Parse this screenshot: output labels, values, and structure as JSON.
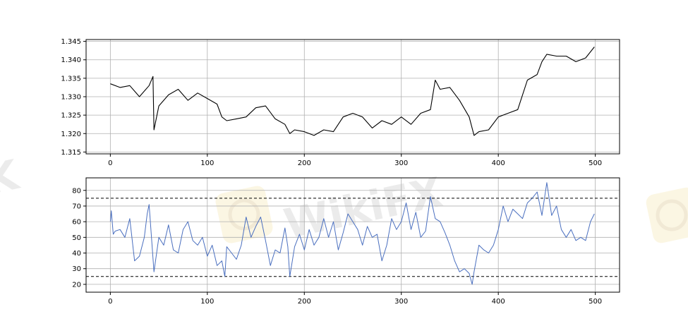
{
  "watermark": {
    "text": "WikiFX",
    "color": "#c8c8c8",
    "badge_color": "#f6e6b0",
    "icon": "eagle-logo-icon"
  },
  "chart_data": [
    {
      "type": "line",
      "title": "",
      "xlabel": "",
      "ylabel": "",
      "xlim": [
        -25,
        525
      ],
      "ylim": [
        1.3145,
        1.3455
      ],
      "xticks": [
        0,
        100,
        200,
        300,
        400,
        500
      ],
      "yticks": [
        1.315,
        1.32,
        1.325,
        1.33,
        1.335,
        1.34,
        1.345
      ],
      "ytick_labels": [
        "1.315",
        "1.320",
        "1.325",
        "1.330",
        "1.335",
        "1.340",
        "1.345"
      ],
      "grid": true,
      "line_color": "#000000",
      "series": [
        {
          "x": [
            0,
            10,
            20,
            30,
            40,
            44,
            45,
            50,
            60,
            70,
            80,
            90,
            100,
            110,
            115,
            120,
            130,
            140,
            150,
            160,
            170,
            180,
            185,
            190,
            200,
            210,
            220,
            230,
            240,
            250,
            260,
            270,
            280,
            290,
            300,
            310,
            320,
            330,
            335,
            340,
            350,
            360,
            370,
            375,
            380,
            390,
            400,
            410,
            420,
            430,
            440,
            445,
            450,
            460,
            470,
            480,
            490,
            499
          ],
          "y": [
            1.3335,
            1.3325,
            1.333,
            1.33,
            1.333,
            1.3355,
            1.321,
            1.3275,
            1.3305,
            1.332,
            1.329,
            1.331,
            1.3295,
            1.328,
            1.3245,
            1.3235,
            1.324,
            1.3245,
            1.327,
            1.3275,
            1.324,
            1.3225,
            1.32,
            1.321,
            1.3205,
            1.3195,
            1.321,
            1.3205,
            1.3245,
            1.3255,
            1.3245,
            1.3215,
            1.3235,
            1.3225,
            1.3245,
            1.3225,
            1.3255,
            1.3265,
            1.3345,
            1.332,
            1.3325,
            1.329,
            1.3245,
            1.3195,
            1.3205,
            1.321,
            1.3245,
            1.3255,
            1.3265,
            1.3345,
            1.336,
            1.3395,
            1.3415,
            1.341,
            1.341,
            1.3395,
            1.3405,
            1.3435
          ]
        }
      ]
    },
    {
      "type": "line",
      "title": "",
      "xlabel": "",
      "ylabel": "",
      "xlim": [
        -25,
        525
      ],
      "ylim": [
        15,
        88
      ],
      "xticks": [
        0,
        100,
        200,
        300,
        400,
        500
      ],
      "yticks": [
        20,
        30,
        40,
        50,
        60,
        70,
        80
      ],
      "hlines": [
        25,
        75
      ],
      "grid": true,
      "line_color": "#4a6fbf",
      "series": [
        {
          "x": [
            0,
            1,
            3,
            5,
            10,
            15,
            20,
            25,
            30,
            35,
            38,
            40,
            45,
            50,
            55,
            60,
            65,
            70,
            75,
            80,
            85,
            90,
            95,
            100,
            105,
            110,
            115,
            118,
            120,
            125,
            130,
            135,
            140,
            145,
            150,
            155,
            160,
            165,
            170,
            175,
            180,
            183,
            185,
            190,
            195,
            200,
            205,
            210,
            215,
            220,
            225,
            230,
            235,
            240,
            245,
            250,
            255,
            260,
            265,
            270,
            275,
            280,
            285,
            290,
            295,
            300,
            305,
            310,
            315,
            320,
            325,
            330,
            335,
            340,
            345,
            350,
            355,
            360,
            365,
            370,
            373,
            375,
            380,
            385,
            390,
            395,
            400,
            405,
            410,
            415,
            420,
            425,
            430,
            435,
            440,
            445,
            450,
            455,
            460,
            465,
            470,
            475,
            480,
            485,
            490,
            495,
            499
          ],
          "y": [
            60,
            67,
            52,
            54,
            55,
            50,
            62,
            35,
            38,
            50,
            65,
            71,
            28,
            50,
            45,
            58,
            42,
            40,
            55,
            60,
            48,
            45,
            50,
            38,
            45,
            32,
            35,
            25,
            44,
            40,
            36,
            45,
            63,
            50,
            57,
            63,
            48,
            32,
            42,
            40,
            56,
            44,
            25,
            44,
            52,
            42,
            55,
            45,
            50,
            62,
            50,
            60,
            42,
            53,
            65,
            60,
            55,
            45,
            57,
            50,
            52,
            35,
            45,
            62,
            55,
            60,
            72,
            55,
            66,
            50,
            54,
            76,
            62,
            60,
            53,
            45,
            35,
            28,
            30,
            27,
            20,
            28,
            45,
            42,
            40,
            45,
            55,
            70,
            60,
            68,
            65,
            62,
            72,
            75,
            79,
            64,
            85,
            64,
            70,
            55,
            50,
            55,
            48,
            50,
            48,
            60,
            65
          ]
        }
      ]
    }
  ]
}
